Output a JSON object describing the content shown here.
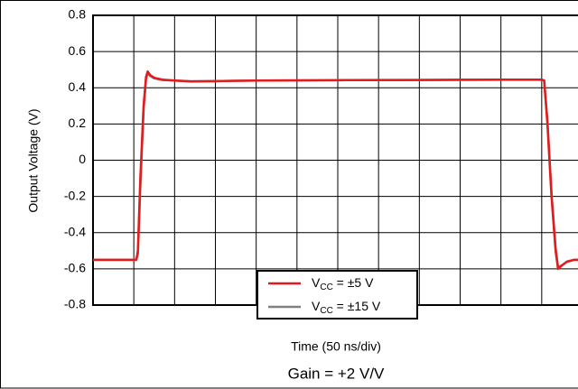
{
  "chart_data": {
    "type": "line",
    "title": "Gain = +2 V/V",
    "xlabel": "Time (50 ns/div)",
    "ylabel": "Output Voltage (V)",
    "x": [
      0,
      53,
      55,
      58,
      62,
      65,
      67,
      70,
      75,
      85,
      100,
      120,
      150,
      200,
      300,
      400,
      500,
      550,
      553,
      557,
      562,
      567,
      570,
      575,
      581,
      590,
      600
    ],
    "series": [
      {
        "name": "VCC = ±5 V",
        "color": "#e41a1c",
        "values": [
          -0.55,
          -0.55,
          -0.5,
          -0.1,
          0.3,
          0.46,
          0.49,
          0.47,
          0.455,
          0.445,
          0.44,
          0.435,
          0.437,
          0.44,
          0.442,
          0.443,
          0.445,
          0.445,
          0.44,
          0.2,
          -0.2,
          -0.5,
          -0.6,
          -0.58,
          -0.56,
          -0.55,
          -0.55
        ]
      },
      {
        "name": "VCC = ±15 V",
        "color": "#808080",
        "values": [
          -0.55,
          -0.55,
          -0.52,
          -0.15,
          0.28,
          0.45,
          0.48,
          0.465,
          0.452,
          0.443,
          0.44,
          0.436,
          0.437,
          0.44,
          0.442,
          0.443,
          0.444,
          0.444,
          0.44,
          0.22,
          -0.18,
          -0.48,
          -0.59,
          -0.58,
          -0.56,
          -0.55,
          -0.55
        ]
      }
    ],
    "xlim": [
      0,
      600
    ],
    "xticks": [
      0,
      50,
      100,
      150,
      200,
      250,
      300,
      350,
      400,
      450,
      500,
      550,
      600
    ],
    "ylim": [
      -0.8,
      0.8
    ],
    "yticks": [
      -0.8,
      -0.6,
      -0.4,
      -0.2,
      0,
      0.2,
      0.4,
      0.6,
      0.8
    ],
    "grid": true,
    "legend": "bottom"
  }
}
